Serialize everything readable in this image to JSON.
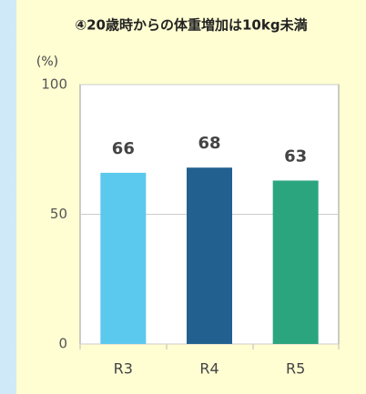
{
  "chart_data": {
    "type": "bar",
    "title": "④20歳時からの体重増加は10kg未満",
    "y_label": "(%)",
    "categories": [
      "R3",
      "R4",
      "R5"
    ],
    "values": [
      66,
      68,
      63
    ],
    "colors": [
      "#5bc8ee",
      "#22618f",
      "#2ba57d"
    ],
    "ylim": [
      0,
      100
    ],
    "yticks": [
      0,
      50,
      100
    ],
    "grid": true
  }
}
